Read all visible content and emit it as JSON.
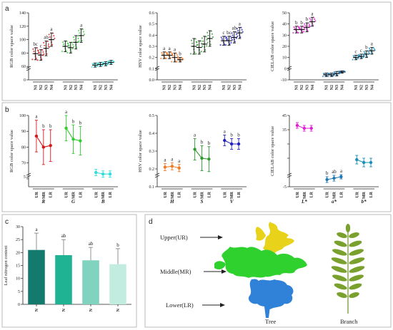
{
  "panel_labels": {
    "a": "a",
    "b": "b",
    "c": "c",
    "d": "d"
  },
  "colors": {
    "R": "#d7191c",
    "G": "#33cc33",
    "B": "#33dddd",
    "H": "#f07b29",
    "S": "#2e9a2e",
    "V": "#2222bb",
    "L": "#e020d0",
    "a": "#1f77b4",
    "b": "#1a8fb8",
    "bars": [
      "#157a6e",
      "#1fb394",
      "#7fd3bf",
      "#c3ece1"
    ]
  },
  "chart_data": [
    {
      "id": "a-rgb",
      "type": "scatter",
      "ylabel": "RGB color space value",
      "ylim": [
        40,
        140
      ],
      "yticks": [
        40,
        60,
        80,
        100,
        120,
        140
      ],
      "yticks_shown": [
        "0",
        "60",
        "80",
        "100",
        "120",
        "140"
      ],
      "groups": [
        {
          "name": "R",
          "color": "R",
          "categories": [
            "N1",
            "N2",
            "N3",
            "N4"
          ],
          "means": [
            79,
            77,
            87,
            100
          ],
          "sd": [
            9,
            8,
            11,
            10
          ],
          "letters": [
            "bc",
            "c",
            "ab",
            "a"
          ]
        },
        {
          "name": "G",
          "color": "G",
          "categories": [
            "N1",
            "N2",
            "N3",
            "N4"
          ],
          "means": [
            90,
            88,
            96,
            106
          ],
          "sd": [
            8,
            8,
            10,
            10
          ],
          "letters": [
            "",
            "",
            "",
            "a"
          ]
        },
        {
          "name": "B",
          "color": "B",
          "categories": [
            "N1",
            "N2",
            "N3",
            "N4"
          ],
          "means": [
            62,
            63,
            64,
            66
          ],
          "sd": [
            3,
            3,
            3,
            3
          ],
          "letters": [
            "",
            "",
            "",
            ""
          ]
        }
      ]
    },
    {
      "id": "a-hsv",
      "type": "scatter",
      "ylabel": "HSV color space value",
      "ylim": [
        0.0,
        0.6
      ],
      "yticks": [
        0.0,
        0.1,
        0.2,
        0.3,
        0.4,
        0.5,
        0.6
      ],
      "yticks_shown": [
        "0.0",
        "0.1",
        "0.2",
        "0.3",
        "0.4",
        "0.5",
        "0.6"
      ],
      "groups": [
        {
          "name": "H",
          "color": "H",
          "categories": [
            "N1",
            "N2",
            "N3",
            "N4"
          ],
          "means": [
            0.22,
            0.22,
            0.2,
            0.18
          ],
          "sd": [
            0.03,
            0.03,
            0.04,
            0.02
          ],
          "letters": [
            "a",
            "a",
            "a",
            "b"
          ]
        },
        {
          "name": "S",
          "color": "S",
          "categories": [
            "N1",
            "N2",
            "N3",
            "N4"
          ],
          "means": [
            0.3,
            0.29,
            0.32,
            0.37
          ],
          "sd": [
            0.07,
            0.06,
            0.07,
            0.07
          ],
          "letters": [
            "",
            "",
            "",
            ""
          ]
        },
        {
          "name": "V",
          "color": "V",
          "categories": [
            "N1",
            "N2",
            "N3",
            "N4"
          ],
          "means": [
            0.35,
            0.35,
            0.38,
            0.42
          ],
          "sd": [
            0.04,
            0.04,
            0.05,
            0.05
          ],
          "letters": [
            "c",
            "bc",
            "ab",
            "a"
          ]
        }
      ]
    },
    {
      "id": "a-lab",
      "type": "scatter",
      "ylabel": "CIELAB color space value",
      "ylim": [
        -10,
        50
      ],
      "yticks": [
        -10,
        0,
        10,
        20,
        30,
        40,
        50
      ],
      "yticks_shown": [
        "-10",
        "0",
        "10",
        "20",
        "30",
        "40",
        "50"
      ],
      "groups": [
        {
          "name": "L*",
          "color": "L",
          "categories": [
            "N1",
            "N2",
            "N3",
            "N4"
          ],
          "means": [
            35,
            35,
            37,
            42
          ],
          "sd": [
            3,
            3,
            4,
            4
          ],
          "letters": [
            "b",
            "b",
            "b",
            "a"
          ]
        },
        {
          "name": "a*",
          "color": "a",
          "categories": [
            "N1",
            "N2",
            "N3",
            "N4"
          ],
          "means": [
            -5.5,
            -5.5,
            -4.5,
            -3
          ],
          "sd": [
            1.5,
            1.5,
            2,
            1
          ],
          "letters": [
            "",
            "",
            "",
            ""
          ]
        },
        {
          "name": "b*",
          "color": "b",
          "categories": [
            "N1",
            "N2",
            "N3",
            "N4"
          ],
          "means": [
            10,
            11,
            13,
            16
          ],
          "sd": [
            2,
            2,
            3,
            3
          ],
          "letters": [
            "c",
            "c",
            "b",
            "a"
          ]
        }
      ]
    },
    {
      "id": "b-rgb",
      "type": "line",
      "ylabel": "RGB color space value",
      "ylim": [
        55,
        100
      ],
      "yticks": [
        60,
        70,
        80,
        90,
        100
      ],
      "yticks_shown": [
        "",
        "70",
        "80",
        "90",
        "100"
      ],
      "ybreak_label": "5",
      "groups": [
        {
          "name": "R",
          "color": "R",
          "categories": [
            "UR",
            "MR",
            "LR"
          ],
          "means": [
            87,
            80,
            81
          ],
          "sd": [
            10,
            11,
            10
          ],
          "letters": [
            "a",
            "b",
            "b"
          ]
        },
        {
          "name": "G",
          "color": "G",
          "categories": [
            "UR",
            "MR",
            "LR"
          ],
          "means": [
            92,
            85,
            84
          ],
          "sd": [
            8,
            9,
            9
          ],
          "letters": [
            "a",
            "b",
            "b"
          ]
        },
        {
          "name": "B",
          "color": "B",
          "categories": [
            "UR",
            "MR",
            "LR"
          ],
          "means": [
            64,
            63,
            63
          ],
          "sd": [
            2,
            2,
            2
          ],
          "letters": [
            "",
            "",
            ""
          ]
        }
      ]
    },
    {
      "id": "b-hsv",
      "type": "line",
      "ylabel": "HSV color space value",
      "ylim": [
        0.1,
        0.5
      ],
      "yticks": [
        0.1,
        0.2,
        0.3,
        0.4,
        0.5
      ],
      "yticks_shown": [
        "0.1",
        "0.2",
        "0.3",
        "0.4",
        "0.5"
      ],
      "groups": [
        {
          "name": "H",
          "color": "H",
          "categories": [
            "UR",
            "MR",
            "LR"
          ],
          "means": [
            0.21,
            0.215,
            0.205
          ],
          "sd": [
            0.02,
            0.02,
            0.02
          ],
          "letters": [
            "a",
            "a",
            "a"
          ]
        },
        {
          "name": "S",
          "color": "S",
          "categories": [
            "UR",
            "MR",
            "LR"
          ],
          "means": [
            0.31,
            0.26,
            0.255
          ],
          "sd": [
            0.06,
            0.07,
            0.07
          ],
          "letters": [
            "a",
            "b",
            "b"
          ]
        },
        {
          "name": "V",
          "color": "V",
          "categories": [
            "UR",
            "MR",
            "LR"
          ],
          "means": [
            0.36,
            0.34,
            0.34
          ],
          "sd": [
            0.03,
            0.03,
            0.03
          ],
          "letters": [
            "a",
            "b",
            "b"
          ]
        }
      ]
    },
    {
      "id": "b-lab",
      "type": "line",
      "ylabel": "CIELAB color space value",
      "ylim": [
        -5,
        45
      ],
      "yticks": [
        -5,
        15,
        25,
        35,
        45
      ],
      "yticks_shown": [
        "-5",
        "",
        "",
        "35",
        "45"
      ],
      "groups": [
        {
          "name": "L*",
          "color": "L",
          "categories": [
            "UR",
            "MR",
            "LR"
          ],
          "means": [
            38,
            36,
            36
          ],
          "sd": [
            2,
            2,
            2
          ],
          "letters": [
            "",
            "",
            ""
          ]
        },
        {
          "name": "a*",
          "color": "a",
          "categories": [
            "UR",
            "MR",
            "LR"
          ],
          "means": [
            0,
            1,
            2
          ],
          "sd": [
            2,
            2,
            1.5
          ],
          "letters": [
            "b",
            "ab",
            "a"
          ]
        },
        {
          "name": "b*",
          "color": "b",
          "categories": [
            "UR",
            "MR",
            "LR"
          ],
          "means": [
            14,
            12,
            12
          ],
          "sd": [
            3,
            3,
            3
          ],
          "letters": [
            "",
            "",
            ""
          ]
        }
      ]
    },
    {
      "id": "c-bar",
      "type": "bar",
      "ylabel": "Leaf nitrogen content",
      "ylim": [
        0,
        30
      ],
      "yticks": [
        0,
        5,
        10,
        15,
        20,
        25,
        30
      ],
      "yticks_shown": [
        "0",
        "5",
        "10",
        "15",
        "20",
        "25",
        "30"
      ],
      "categories": [
        "N",
        "N",
        "N",
        "N"
      ],
      "values": [
        21,
        19,
        17,
        15.5
      ],
      "sd": [
        6.5,
        6,
        5,
        6
      ],
      "letters": [
        "a",
        "ab",
        "ab",
        "b"
      ]
    }
  ],
  "panel_d": {
    "labels": [
      "Upper(UR)",
      "Middle(MR)",
      "Lower(LR)"
    ],
    "tree_caption": "Tree",
    "branch_caption": "Branch"
  }
}
